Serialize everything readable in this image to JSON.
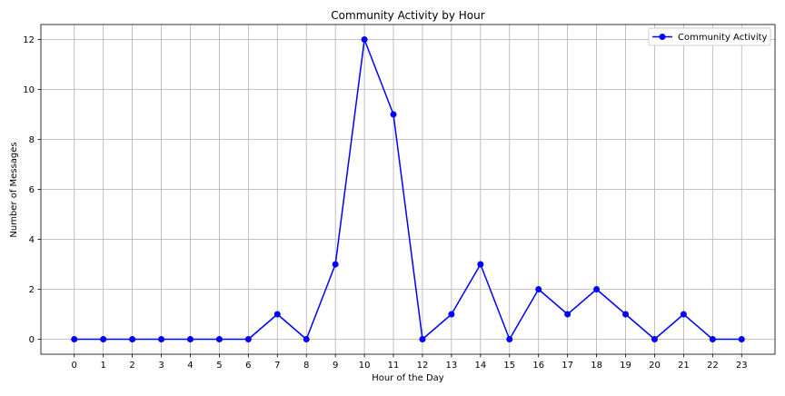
{
  "chart_data": {
    "type": "line",
    "title": "Community Activity by Hour",
    "xlabel": "Hour of the Day",
    "ylabel": "Number of Messages",
    "x": [
      0,
      1,
      2,
      3,
      4,
      5,
      6,
      7,
      8,
      9,
      10,
      11,
      12,
      13,
      14,
      15,
      16,
      17,
      18,
      19,
      20,
      21,
      22,
      23
    ],
    "xticks": [
      "0",
      "1",
      "2",
      "3",
      "4",
      "5",
      "6",
      "7",
      "8",
      "9",
      "10",
      "11",
      "12",
      "13",
      "14",
      "15",
      "16",
      "17",
      "18",
      "19",
      "20",
      "21",
      "22",
      "23"
    ],
    "yticks": [
      "0",
      "2",
      "4",
      "6",
      "8",
      "10",
      "12"
    ],
    "xlim": [
      -1.15,
      24.15
    ],
    "ylim": [
      -0.6,
      12.6
    ],
    "grid": true,
    "legend_position": "top-right",
    "series": [
      {
        "name": "Community Activity",
        "color": "#0000ff",
        "marker": "circle",
        "values": [
          0,
          0,
          0,
          0,
          0,
          0,
          0,
          1,
          0,
          3,
          12,
          9,
          0,
          1,
          3,
          0,
          2,
          1,
          2,
          1,
          0,
          1,
          0,
          0
        ]
      }
    ]
  }
}
